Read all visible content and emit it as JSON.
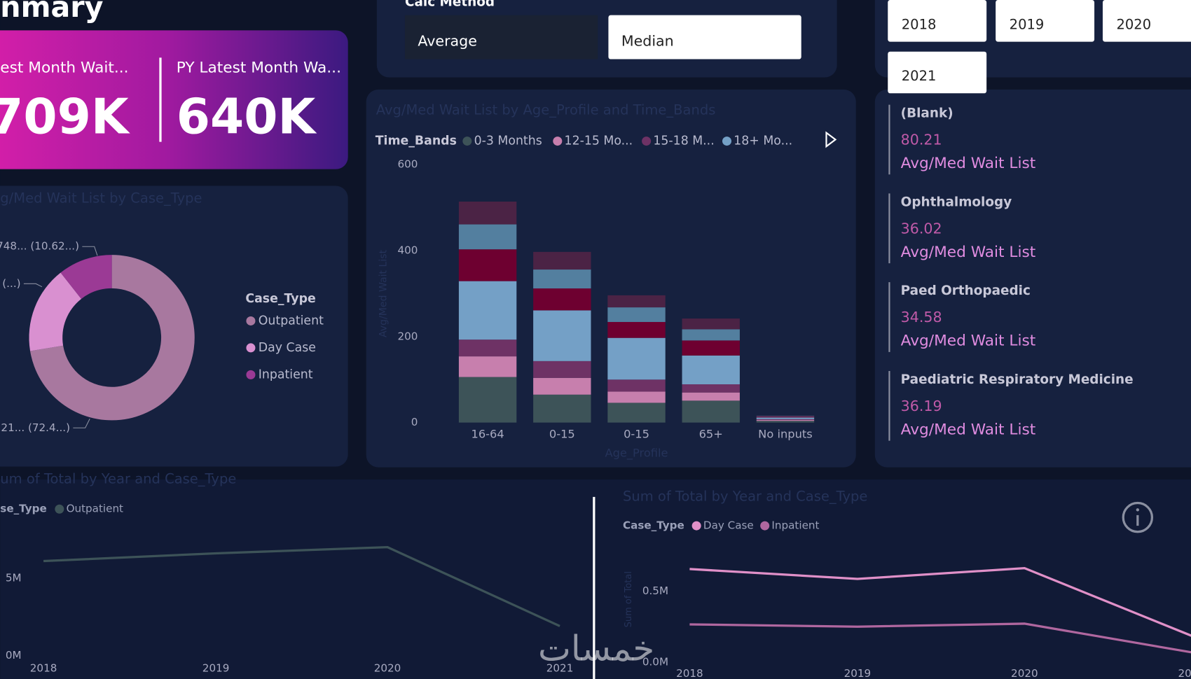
{
  "header": {
    "title": "nmary"
  },
  "kpis": [
    {
      "label": "est Month Wait...",
      "value": "709K"
    },
    {
      "label": "PY Latest Month Wa...",
      "value": "640K"
    }
  ],
  "calc_method": {
    "title": "Calc Method",
    "options": [
      "Average",
      "Median"
    ]
  },
  "year_slicer": {
    "options": [
      "2018",
      "2019",
      "2020",
      "2021"
    ]
  },
  "chart_data": [
    {
      "type": "pie",
      "donut": true,
      "title": "g/Med Wait List by Case_Type",
      "legend_title": "Case_Type",
      "categories": [
        "Outpatient",
        "Day Case",
        "Inpatient"
      ],
      "values": [
        72.4,
        16.98,
        10.62
      ],
      "value_labels": [
        ".21... (72.4...)",
        "(...)",
        "748... (10.62...)"
      ],
      "colors": [
        "#a8789f",
        "#d990d0",
        "#9b3a95"
      ]
    },
    {
      "type": "stacked_bar",
      "title": "Avg/Med Wait List by Age_Profile and Time_Bands",
      "legend_title": "Time_Bands",
      "x_label": "Age_Profile",
      "y_label": "Avg/Med Wait List",
      "categories": [
        "16-64",
        "0-15",
        "0-15",
        "65+",
        "No inputs"
      ],
      "ylim": [
        0,
        600
      ],
      "yticks": [
        0,
        200,
        400,
        600
      ],
      "grid": false,
      "series": [
        {
          "name": "0-3 Months",
          "color": "#3d5358",
          "values": [
            106,
            65,
            46,
            51,
            4
          ]
        },
        {
          "name": "12-15 Mo...",
          "color": "#c77fad",
          "values": [
            48,
            39,
            26,
            19,
            2
          ]
        },
        {
          "name": "15-18 M...",
          "color": "#6e3265",
          "values": [
            39,
            39,
            28,
            19,
            2
          ]
        },
        {
          "name": "18+ Mo...",
          "color": "#74a0c6",
          "values": [
            136,
            118,
            97,
            67,
            4
          ]
        },
        {
          "name": null,
          "color": "#6e0030",
          "values": [
            74,
            51,
            37,
            35,
            2
          ]
        },
        {
          "name": null,
          "color": "#537f9f",
          "values": [
            58,
            44,
            34,
            26,
            1
          ]
        },
        {
          "name": null,
          "color": "#4b2345",
          "values": [
            53,
            41,
            28,
            25,
            1
          ]
        }
      ]
    },
    {
      "type": "line",
      "title": "um of Total by Year and Case_Type",
      "legend_title": "se_Type",
      "categories": [
        "2018",
        "2019",
        "2020",
        "2021"
      ],
      "ylim": [
        0,
        8
      ],
      "yticks": [
        {
          "value": 0,
          "label": "0M"
        },
        {
          "value": 5,
          "label": "5M"
        }
      ],
      "grid": false,
      "series": [
        {
          "name": "Outpatient",
          "color": "#3d5358",
          "values": [
            6.1,
            6.6,
            7.0,
            1.9
          ]
        }
      ]
    },
    {
      "type": "line",
      "title": "Sum of Total by Year and Case_Type",
      "legend_title": "Case_Type",
      "y_label": "Sum of Total",
      "categories": [
        "2018",
        "2019",
        "2020",
        "2021"
      ],
      "ylim": [
        0,
        0.8
      ],
      "yticks": [
        {
          "value": 0,
          "label": "0.0M"
        },
        {
          "value": 0.5,
          "label": "0.5M"
        }
      ],
      "grid": false,
      "series": [
        {
          "name": "Day Case",
          "color": "#e090c8",
          "values": [
            0.654,
            0.585,
            0.66,
            0.186
          ]
        },
        {
          "name": "Inpatient",
          "color": "#b0679f",
          "values": [
            0.266,
            0.25,
            0.271,
            0.07
          ]
        }
      ]
    }
  ],
  "card_list": [
    {
      "name": "(Blank)",
      "value": "80.21",
      "label": "Avg/Med Wait List"
    },
    {
      "name": "Ophthalmology",
      "value": "36.02",
      "label": "Avg/Med Wait List"
    },
    {
      "name": "Paed Orthopaedic",
      "value": "34.58",
      "label": "Avg/Med Wait List"
    },
    {
      "name": "Paediatric Respiratory Medicine",
      "value": "36.19",
      "label": "Avg/Med Wait List"
    }
  ],
  "watermark": "خمسات"
}
